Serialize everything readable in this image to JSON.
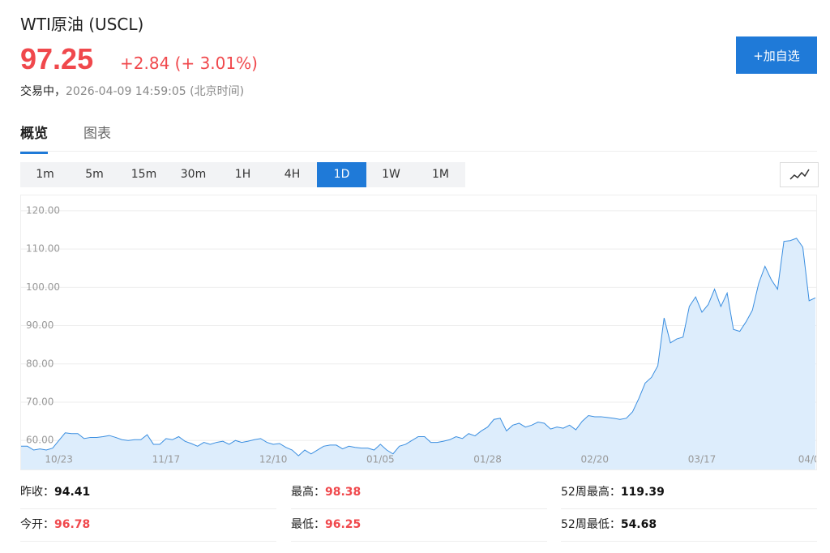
{
  "header": {
    "title": "WTI原油",
    "code": "(USCL)",
    "price": "97.25",
    "change": "+2.84",
    "change_pct": "(+ 3.01%)",
    "status": "交易中，",
    "timestamp": "2026-04-09 14:59:05",
    "timezone": "(北京时间)",
    "watch_button": "+加自选"
  },
  "tabs": [
    "概览",
    "图表"
  ],
  "active_tab": "概览",
  "periods": [
    "1m",
    "5m",
    "15m",
    "30m",
    "1H",
    "4H",
    "1D",
    "1W",
    "1M"
  ],
  "active_period": "1D",
  "chart_data": {
    "type": "area",
    "color": "#3a8ee0",
    "fill": "#ddedfc",
    "grid": true,
    "ylim": [
      52,
      124
    ],
    "yticks": [
      {
        "value": 60,
        "label": "60.00"
      },
      {
        "value": 70,
        "label": "70.00"
      },
      {
        "value": 80,
        "label": "80.00"
      },
      {
        "value": 90,
        "label": "90.00"
      },
      {
        "value": 100,
        "label": "100.00"
      },
      {
        "value": 110,
        "label": "110.00"
      },
      {
        "value": 120,
        "label": "120.00"
      }
    ],
    "categories": [
      null,
      null,
      null,
      null,
      null,
      null,
      "10/23",
      null,
      null,
      null,
      null,
      null,
      null,
      null,
      null,
      null,
      null,
      null,
      null,
      null,
      null,
      null,
      null,
      "11/17",
      null,
      null,
      null,
      null,
      null,
      null,
      null,
      null,
      null,
      null,
      null,
      null,
      null,
      null,
      null,
      null,
      "12/10",
      null,
      null,
      null,
      null,
      null,
      null,
      null,
      null,
      null,
      null,
      null,
      null,
      null,
      null,
      null,
      null,
      "01/05",
      null,
      null,
      null,
      null,
      null,
      null,
      null,
      null,
      null,
      null,
      null,
      null,
      null,
      null,
      null,
      null,
      "01/28",
      null,
      null,
      null,
      null,
      null,
      null,
      null,
      null,
      null,
      null,
      null,
      null,
      null,
      null,
      null,
      null,
      "02/20",
      null,
      null,
      null,
      null,
      null,
      null,
      null,
      null,
      null,
      null,
      null,
      null,
      null,
      null,
      null,
      null,
      "03/17",
      null,
      null,
      null,
      null,
      null,
      null,
      null,
      null,
      null,
      null,
      null,
      null,
      null,
      null,
      null,
      null,
      "04/0",
      null
    ],
    "values": [
      58.5,
      58.5,
      57.5,
      57.8,
      57.5,
      58,
      60,
      62,
      61.8,
      61.8,
      60.5,
      60.8,
      60.8,
      61,
      61.3,
      60.8,
      60.2,
      60,
      60.2,
      60.2,
      61.5,
      59,
      59,
      60.5,
      60.2,
      61,
      59.8,
      59.2,
      58.5,
      59.5,
      59,
      59.5,
      59.8,
      59,
      60,
      59.5,
      59.8,
      60.2,
      60.5,
      59.5,
      59,
      59.2,
      58.2,
      57.5,
      56,
      57.5,
      56.5,
      57.5,
      58.5,
      58.8,
      58.8,
      57.8,
      58.5,
      58.2,
      58,
      58,
      57.5,
      59,
      57.5,
      56.5,
      58.5,
      59,
      60,
      61,
      61,
      59.5,
      59.5,
      59.8,
      60.2,
      61,
      60.5,
      61.8,
      61.2,
      62.5,
      63.5,
      65.5,
      65.8,
      62.5,
      64,
      64.5,
      63.5,
      64,
      64.8,
      64.5,
      63,
      63.5,
      63.2,
      64,
      62.8,
      65,
      66.5,
      66.2,
      66.2,
      66,
      65.8,
      65.5,
      65.8,
      67.5,
      71,
      75,
      76.5,
      79.5,
      92,
      85.5,
      86.5,
      87,
      95,
      97.5,
      93.5,
      95.5,
      99.5,
      95,
      98.5,
      89,
      88.5,
      91,
      94,
      101,
      105.5,
      102,
      99.5,
      112,
      112.2,
      112.8,
      110.5,
      96.5,
      97.25
    ]
  },
  "stats": [
    {
      "label": "昨收：",
      "value": 94.41,
      "color": "#111111"
    },
    {
      "label": "最高：",
      "value": 98.38,
      "color": "#f0484c"
    },
    {
      "label": "52周最高：",
      "value": 119.39,
      "color": "#111111"
    },
    {
      "label": "今开：",
      "value": 96.78,
      "color": "#f0484c"
    },
    {
      "label": "最低：",
      "value": 96.25,
      "color": "#f0484c"
    },
    {
      "label": "52周最低：",
      "value": 54.68,
      "color": "#111111"
    }
  ]
}
